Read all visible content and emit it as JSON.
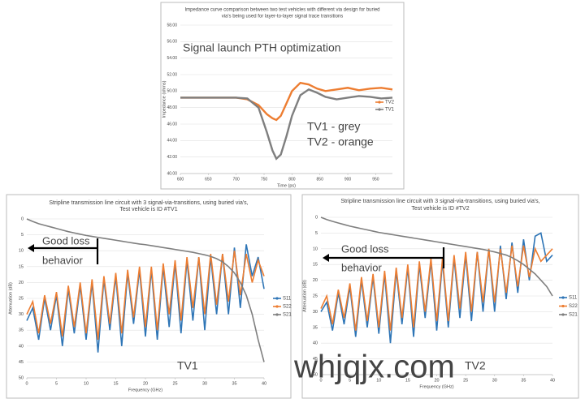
{
  "chart_data": [
    {
      "type": "line",
      "title": [
        "Impedance curve comparison between two test vehicles with different via design for buried",
        "via's being used for layer-to-layer signal trace transitions"
      ],
      "x_label": "Time (ps)",
      "y_label": "Impedance (ohms)",
      "x": [
        600,
        650,
        700,
        720,
        740,
        755,
        765,
        772,
        780,
        790,
        800,
        815,
        830,
        845,
        860,
        880,
        900,
        920,
        940,
        960,
        980
      ],
      "series": [
        {
          "name": "TV2",
          "color": "#ed7d31",
          "values": [
            49.2,
            49.2,
            49.2,
            49.0,
            48.3,
            47.2,
            46.7,
            46.5,
            47.0,
            48.5,
            50.0,
            51.0,
            50.8,
            50.3,
            50.0,
            50.2,
            50.4,
            50.1,
            50.3,
            50.4,
            50.2
          ]
        },
        {
          "name": "TV1",
          "color": "#7f7f7f",
          "values": [
            49.2,
            49.2,
            49.2,
            49.1,
            48.0,
            45.0,
            42.8,
            41.8,
            42.3,
            44.5,
            47.0,
            49.5,
            50.2,
            49.8,
            49.3,
            49.0,
            49.2,
            49.4,
            49.3,
            49.1,
            49.2
          ]
        }
      ],
      "xlim": [
        600,
        980
      ],
      "xticks": [
        600,
        650,
        700,
        750,
        800,
        850,
        900,
        950
      ],
      "ylim": [
        40,
        58
      ],
      "yticks": [
        {
          "value": 40,
          "label": "40.00"
        },
        {
          "value": 42,
          "label": "42.00"
        },
        {
          "value": 44,
          "label": "44.00"
        },
        {
          "value": 46,
          "label": "46.00"
        },
        {
          "value": 48,
          "label": "48.00"
        },
        {
          "value": 50,
          "label": "50.00"
        },
        {
          "value": 52,
          "label": "52.00"
        },
        {
          "value": 54,
          "label": "54.00"
        },
        {
          "value": 56,
          "label": "56.00"
        },
        {
          "value": 58,
          "label": "58.00"
        }
      ],
      "grid": true,
      "annotations": [
        "Signal launch PTH optimization",
        "TV1 - grey",
        "TV2 - orange"
      ]
    },
    {
      "type": "line",
      "title": [
        "Stripline transmission line circuit with 3 signal-via-transitions, using buried via's,",
        "Test vehicle is ID #TV1"
      ],
      "x_label": "Frequency (GHz)",
      "y_label": "Attenuation (dB)",
      "x": [
        0,
        1,
        2,
        3,
        4,
        5,
        6,
        7,
        8,
        9,
        10,
        11,
        12,
        13,
        14,
        15,
        16,
        17,
        18,
        19,
        20,
        21,
        22,
        23,
        24,
        25,
        26,
        27,
        28,
        29,
        30,
        31,
        32,
        33,
        34,
        35,
        36,
        37,
        38,
        39,
        40
      ],
      "series": [
        {
          "name": "S11",
          "color": "#2e75b6",
          "values": [
            32,
            28,
            38,
            25,
            35,
            24,
            40,
            22,
            36,
            21,
            38,
            20,
            42,
            19,
            35,
            18,
            40,
            17,
            33,
            16,
            37,
            16,
            38,
            15,
            34,
            14,
            36,
            13,
            32,
            12,
            35,
            12,
            30,
            11,
            30,
            9,
            28,
            8,
            18,
            12,
            22
          ]
        },
        {
          "name": "S22",
          "color": "#ed7d31",
          "values": [
            30,
            26,
            36,
            24,
            33,
            23,
            37,
            21,
            34,
            20,
            36,
            19,
            38,
            18,
            33,
            17,
            36,
            16,
            31,
            15,
            34,
            15,
            35,
            14,
            30,
            13,
            32,
            12,
            28,
            12,
            30,
            11,
            27,
            11,
            26,
            10,
            24,
            11,
            20,
            13,
            18
          ]
        },
        {
          "name": "S21",
          "color": "#7f7f7f",
          "values": [
            0,
            0.8,
            1.5,
            2,
            2.5,
            3,
            3.5,
            4,
            4.4,
            4.8,
            5.2,
            5.5,
            5.8,
            6.1,
            6.4,
            6.7,
            7,
            7.3,
            7.6,
            7.9,
            8.1,
            8.4,
            8.7,
            9,
            9.3,
            9.6,
            9.9,
            10.2,
            10.5,
            10.9,
            11.3,
            11.8,
            12.5,
            13.5,
            15,
            17,
            20,
            24,
            30,
            38,
            45
          ]
        }
      ],
      "xlim": [
        0,
        40
      ],
      "xticks": [
        0,
        5,
        10,
        15,
        20,
        25,
        30,
        35,
        40
      ],
      "ylim": [
        50,
        0
      ],
      "yticks": [
        0,
        5,
        10,
        15,
        20,
        25,
        30,
        35,
        40,
        45,
        50
      ],
      "grid": true,
      "annotations": [
        "Good loss",
        "behavior",
        "TV1"
      ]
    },
    {
      "type": "line",
      "title": [
        "Stripline transmission line circuit with 3 signal-via-transitions, using buried via's,",
        "Test vehicle is ID #TV2"
      ],
      "x_label": "Frequency (GHz)",
      "y_label": "Attenuation (dB)",
      "x": [
        0,
        1,
        2,
        3,
        4,
        5,
        6,
        7,
        8,
        9,
        10,
        11,
        12,
        13,
        14,
        15,
        16,
        17,
        18,
        19,
        20,
        21,
        22,
        23,
        24,
        25,
        26,
        27,
        28,
        29,
        30,
        31,
        32,
        33,
        34,
        35,
        36,
        37,
        38,
        39,
        40
      ],
      "series": [
        {
          "name": "S11",
          "color": "#2e75b6",
          "values": [
            30,
            27,
            36,
            24,
            34,
            22,
            38,
            20,
            35,
            19,
            37,
            18,
            40,
            17,
            34,
            16,
            38,
            15,
            32,
            14,
            36,
            14,
            35,
            13,
            32,
            12,
            33,
            11,
            30,
            10,
            30,
            9,
            26,
            8,
            24,
            7,
            20,
            6,
            5,
            14,
            12
          ]
        },
        {
          "name": "S22",
          "color": "#ed7d31",
          "values": [
            29,
            25,
            34,
            23,
            32,
            21,
            36,
            19,
            33,
            18,
            35,
            17,
            36,
            16,
            32,
            15,
            35,
            14,
            30,
            13,
            33,
            13,
            33,
            12,
            29,
            11,
            30,
            11,
            27,
            10,
            27,
            10,
            24,
            9,
            22,
            9,
            19,
            10,
            14,
            12,
            10
          ]
        },
        {
          "name": "S21",
          "color": "#7f7f7f",
          "values": [
            0,
            0.7,
            1.3,
            1.8,
            2.3,
            2.8,
            3.2,
            3.6,
            4,
            4.4,
            4.8,
            5.1,
            5.4,
            5.7,
            6,
            6.3,
            6.6,
            6.9,
            7.2,
            7.5,
            7.8,
            8.1,
            8.4,
            8.7,
            9,
            9.3,
            9.6,
            9.9,
            10.2,
            10.6,
            11,
            11.5,
            12,
            12.8,
            13.8,
            15,
            16.5,
            18,
            20,
            22,
            25
          ]
        }
      ],
      "xlim": [
        0,
        40
      ],
      "xticks": [
        0,
        5,
        10,
        15,
        20,
        25,
        30,
        35,
        40
      ],
      "ylim": [
        50,
        0
      ],
      "yticks": [
        0,
        5,
        10,
        15,
        20,
        25,
        30,
        35,
        40,
        45,
        50
      ],
      "grid": true,
      "annotations": [
        "Good loss",
        "behavior",
        "TV2"
      ]
    }
  ],
  "watermark": "whjqjx.com"
}
